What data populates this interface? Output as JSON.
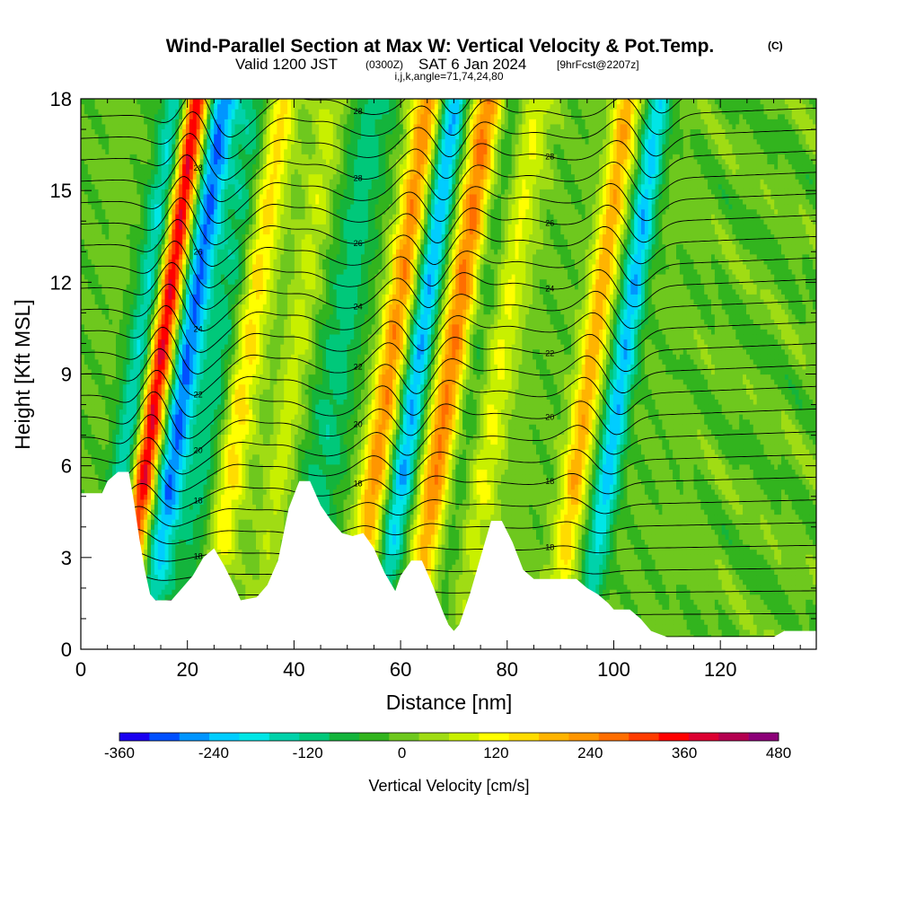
{
  "title": {
    "main": "Wind-Parallel Section at Max W: Vertical Velocity & Pot.Temp.",
    "main_suffix": "(C)",
    "valid_prefix": "Valid 1200 JST",
    "valid_utc": "(0300Z)",
    "valid_date": "SAT 6 Jan 2024",
    "forecast": "[9hrFcst@2207z]",
    "indices": "i,j,k,angle=71,74,24,80"
  },
  "chart_data": {
    "type": "heatmap",
    "xlabel": "Distance [nm]",
    "ylabel": "Height [Kft MSL]",
    "xlim": [
      0,
      138
    ],
    "ylim": [
      0,
      18
    ],
    "x_ticks": [
      "0",
      "20",
      "40",
      "60",
      "80",
      "100",
      "120"
    ],
    "x_tick_values": [
      0,
      20,
      40,
      60,
      80,
      100,
      120
    ],
    "y_ticks": [
      "0",
      "3",
      "6",
      "9",
      "12",
      "15",
      "18"
    ],
    "y_tick_values": [
      0,
      3,
      6,
      9,
      12,
      15,
      18
    ],
    "colorbar": {
      "title": "Vertical Velocity [cm/s]",
      "min": -360,
      "max": 480,
      "step": 40,
      "labels": [
        "-360",
        "-240",
        "-120",
        "0",
        "120",
        "240",
        "360",
        "480"
      ],
      "label_values": [
        -360,
        -240,
        -120,
        0,
        120,
        240,
        360,
        480
      ],
      "colors": [
        "#1a00f0",
        "#0050ff",
        "#0095ff",
        "#00cdff",
        "#00e6e6",
        "#00d2aa",
        "#00c87a",
        "#14b43c",
        "#32b41e",
        "#6ec81e",
        "#a0dc14",
        "#c8f000",
        "#ffff00",
        "#ffdc00",
        "#ffb400",
        "#ff9600",
        "#ff6e00",
        "#ff3c00",
        "#ff0000",
        "#dc0032",
        "#b40050",
        "#8c0078"
      ]
    },
    "terrain_kft": [
      [
        0,
        5.1
      ],
      [
        4,
        5.1
      ],
      [
        5,
        5.5
      ],
      [
        7,
        5.8
      ],
      [
        9,
        5.8
      ],
      [
        10,
        4.8
      ],
      [
        11,
        3.6
      ],
      [
        12,
        2.6
      ],
      [
        13,
        1.8
      ],
      [
        14,
        1.6
      ],
      [
        17,
        1.6
      ],
      [
        19,
        2.0
      ],
      [
        21,
        2.4
      ],
      [
        23,
        3.0
      ],
      [
        25,
        3.3
      ],
      [
        27,
        2.7
      ],
      [
        29,
        2.0
      ],
      [
        30,
        1.6
      ],
      [
        33,
        1.7
      ],
      [
        35,
        2.1
      ],
      [
        37,
        2.9
      ],
      [
        39,
        4.6
      ],
      [
        41,
        5.5
      ],
      [
        43,
        5.5
      ],
      [
        45,
        4.7
      ],
      [
        47,
        4.2
      ],
      [
        49,
        3.8
      ],
      [
        51,
        3.7
      ],
      [
        53,
        3.8
      ],
      [
        55,
        3.3
      ],
      [
        57,
        2.5
      ],
      [
        59,
        1.9
      ],
      [
        60,
        2.4
      ],
      [
        62,
        2.9
      ],
      [
        64,
        2.9
      ],
      [
        66,
        2.1
      ],
      [
        68,
        1.2
      ],
      [
        69,
        0.8
      ],
      [
        70,
        0.6
      ],
      [
        71,
        0.8
      ],
      [
        73,
        1.8
      ],
      [
        75,
        3.0
      ],
      [
        77,
        4.2
      ],
      [
        79,
        4.2
      ],
      [
        81,
        3.5
      ],
      [
        83,
        2.6
      ],
      [
        85,
        2.3
      ],
      [
        93,
        2.3
      ],
      [
        95,
        2.0
      ],
      [
        97,
        1.8
      ],
      [
        99,
        1.5
      ],
      [
        100,
        1.3
      ],
      [
        103,
        1.3
      ],
      [
        105,
        1.0
      ],
      [
        107,
        0.6
      ],
      [
        110,
        0.4
      ],
      [
        130,
        0.4
      ],
      [
        132,
        0.6
      ],
      [
        138,
        0.6
      ]
    ],
    "updraft_bands": [
      {
        "x": 14.5,
        "amp": 440,
        "width": 1.8
      },
      {
        "x": 30.5,
        "amp": 180,
        "width": 2.2
      },
      {
        "x": 40.0,
        "amp": 90,
        "width": 2.0
      },
      {
        "x": 58.0,
        "amp": 260,
        "width": 2.0
      },
      {
        "x": 69.5,
        "amp": 300,
        "width": 2.2
      },
      {
        "x": 78.0,
        "amp": 130,
        "width": 2.4
      },
      {
        "x": 95.5,
        "amp": 220,
        "width": 1.8
      }
    ],
    "downdraft_bands": [
      {
        "x": 11.0,
        "amp": -200,
        "width": 2.0
      },
      {
        "x": 19.5,
        "amp": -300,
        "width": 2.0
      },
      {
        "x": 26.0,
        "amp": -120,
        "width": 2.5
      },
      {
        "x": 48.0,
        "amp": -110,
        "width": 3.0
      },
      {
        "x": 63.0,
        "amp": -260,
        "width": 1.8
      },
      {
        "x": 73.5,
        "amp": -100,
        "width": 2.5
      },
      {
        "x": 101.5,
        "amp": -240,
        "width": 1.7
      }
    ],
    "isentrope_labels_c": [
      "16",
      "18",
      "20",
      "22",
      "24",
      "26",
      "28"
    ]
  }
}
